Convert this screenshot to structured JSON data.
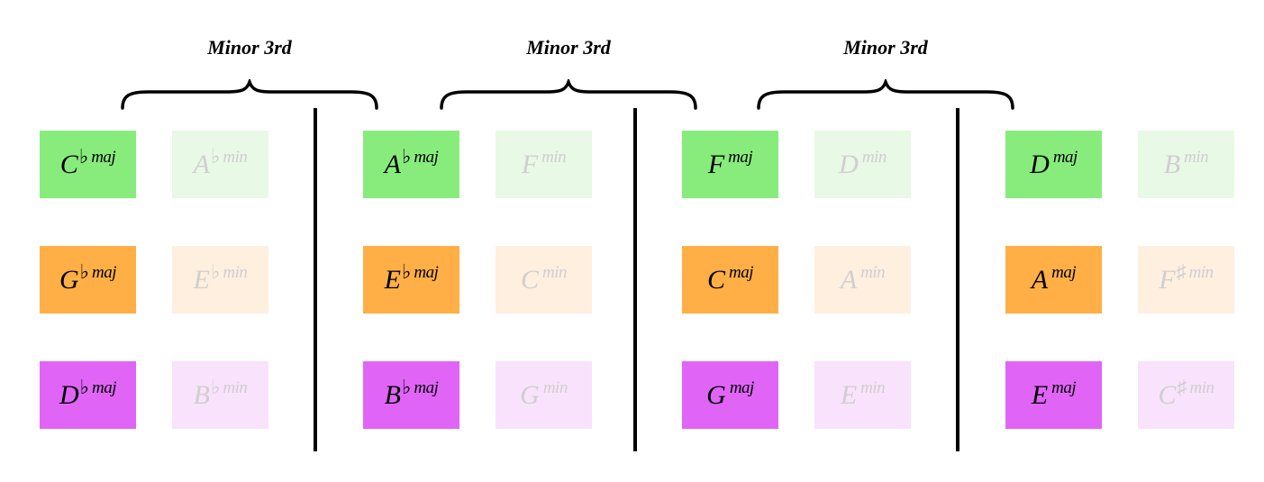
{
  "bracket_label": "Minor 3rd",
  "colors": {
    "green": "#88ec7d",
    "green_light": "#e8f9e5",
    "orange": "#ffaf46",
    "orange_light": "#ffefdf",
    "purple": "#e065f7",
    "purple_light": "#f9e2fc",
    "minor_text": "#cfcfcf"
  },
  "groups": [
    {
      "rows": [
        {
          "color": "green",
          "major": {
            "root": "C",
            "acc": "♭",
            "qual": "maj"
          },
          "minor": {
            "root": "A",
            "acc": "♭",
            "qual": "min"
          }
        },
        {
          "color": "orange",
          "major": {
            "root": "G",
            "acc": "♭",
            "qual": "maj"
          },
          "minor": {
            "root": "E",
            "acc": "♭",
            "qual": "min"
          }
        },
        {
          "color": "purple",
          "major": {
            "root": "D",
            "acc": "♭",
            "qual": "maj"
          },
          "minor": {
            "root": "B",
            "acc": "♭",
            "qual": "min"
          }
        }
      ]
    },
    {
      "rows": [
        {
          "color": "green",
          "major": {
            "root": "A",
            "acc": "♭",
            "qual": "maj"
          },
          "minor": {
            "root": "F",
            "acc": "",
            "qual": "min"
          }
        },
        {
          "color": "orange",
          "major": {
            "root": "E",
            "acc": "♭",
            "qual": "maj"
          },
          "minor": {
            "root": "C",
            "acc": "",
            "qual": "min"
          }
        },
        {
          "color": "purple",
          "major": {
            "root": "B",
            "acc": "♭",
            "qual": "maj"
          },
          "minor": {
            "root": "G",
            "acc": "",
            "qual": "min"
          }
        }
      ]
    },
    {
      "rows": [
        {
          "color": "green",
          "major": {
            "root": "F",
            "acc": "",
            "qual": "maj"
          },
          "minor": {
            "root": "D",
            "acc": "",
            "qual": "min"
          }
        },
        {
          "color": "orange",
          "major": {
            "root": "C",
            "acc": "",
            "qual": "maj"
          },
          "minor": {
            "root": "A",
            "acc": "",
            "qual": "min"
          }
        },
        {
          "color": "purple",
          "major": {
            "root": "G",
            "acc": "",
            "qual": "maj"
          },
          "minor": {
            "root": "E",
            "acc": "",
            "qual": "min"
          }
        }
      ]
    },
    {
      "rows": [
        {
          "color": "green",
          "major": {
            "root": "D",
            "acc": "",
            "qual": "maj"
          },
          "minor": {
            "root": "B",
            "acc": "",
            "qual": "min"
          }
        },
        {
          "color": "orange",
          "major": {
            "root": "A",
            "acc": "",
            "qual": "maj"
          },
          "minor": {
            "root": "F",
            "acc": "♯",
            "qual": "min"
          }
        },
        {
          "color": "purple",
          "major": {
            "root": "E",
            "acc": "",
            "qual": "maj"
          },
          "minor": {
            "root": "C",
            "acc": "♯",
            "qual": "min"
          }
        }
      ]
    }
  ]
}
